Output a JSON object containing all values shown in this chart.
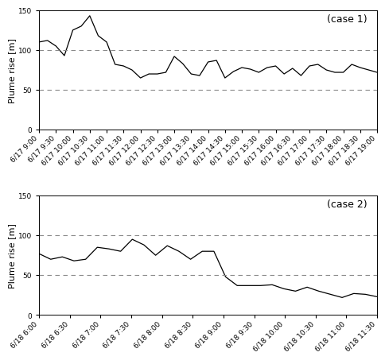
{
  "case1": {
    "label": "(case 1)",
    "x_labels": [
      "6/17 9:00",
      "6/17 9:30",
      "6/17 10:00",
      "6/17 10:30",
      "6/17 11:00",
      "6/17 11:30",
      "6/17 12:00",
      "6/17 12:30",
      "6/17 13:00",
      "6/17 13:30",
      "6/17 14:00",
      "6/17 14:30",
      "6/17 15:00",
      "6/17 15:30",
      "6/17 16:00",
      "6/17 16:30",
      "6/17 17:00",
      "6/17 17:30",
      "6/17 18:00",
      "6/17 18:30",
      "6/17 19:00"
    ],
    "values": [
      110,
      112,
      105,
      93,
      125,
      130,
      143,
      118,
      110,
      82,
      80,
      75,
      65,
      70,
      70,
      72,
      92,
      83,
      70,
      68,
      85,
      87,
      65,
      73,
      78,
      76,
      72,
      78,
      80,
      70,
      77,
      68,
      80,
      82,
      75,
      72,
      72,
      82,
      78,
      75,
      72
    ]
  },
  "case2": {
    "label": "(case 2)",
    "x_labels": [
      "6/18 6:00",
      "6/18 6:30",
      "6/18 7:00",
      "6/18 7:30",
      "6/18 8:00",
      "6/18 8:30",
      "6/18 9:00",
      "6/18 9:30",
      "6/18 10:00",
      "6/18 10:30",
      "6/18 11:00",
      "6/18 11:30"
    ],
    "values": [
      77,
      70,
      73,
      68,
      70,
      85,
      83,
      80,
      95,
      88,
      75,
      87,
      80,
      70,
      80,
      80,
      48,
      37,
      37,
      37,
      38,
      33,
      30,
      35,
      30,
      26,
      22,
      27,
      26,
      23
    ]
  },
  "ylim": [
    0,
    150
  ],
  "yticks": [
    0,
    50,
    100,
    150
  ],
  "dashed_lines": [
    50,
    100
  ],
  "ylabel": "Plume rise [m]",
  "line_color": "#000000",
  "dashed_color": "#888888",
  "bg_color": "#ffffff",
  "ylabel_fontsize": 8,
  "tick_fontsize": 6.5,
  "annotation_fontsize": 9
}
